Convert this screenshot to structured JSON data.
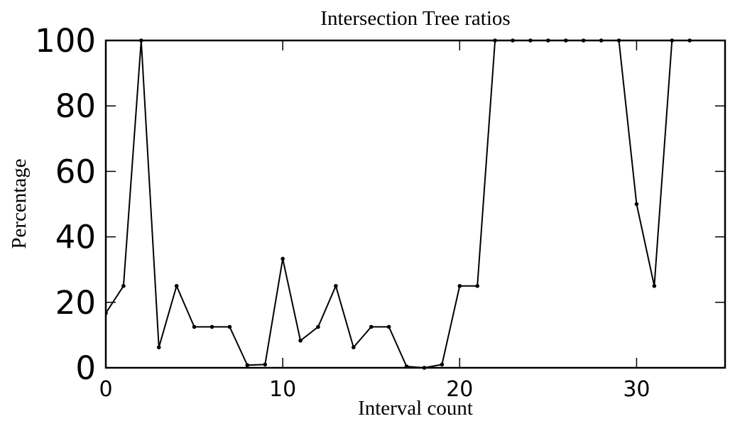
{
  "chart_data": {
    "type": "line",
    "title": "Intersection Tree ratios",
    "xlabel": "Interval count",
    "ylabel": "Percentage",
    "xlim": [
      0,
      35
    ],
    "ylim": [
      0,
      100
    ],
    "xticks": [
      0,
      10,
      20,
      30
    ],
    "yticks": [
      0,
      20,
      40,
      60,
      80,
      100
    ],
    "grid": false,
    "legend": "none",
    "line_color": "#000000",
    "series": [
      {
        "x": [
          0,
          1,
          2,
          3,
          4,
          5,
          6,
          7,
          8,
          9,
          10,
          11,
          12,
          13,
          14,
          15,
          16,
          17,
          18,
          19,
          20,
          21,
          22,
          23,
          24,
          25,
          26,
          27,
          28,
          29,
          30,
          31,
          32,
          33
        ],
        "values": [
          16.7,
          25,
          100,
          6.25,
          25,
          12.5,
          12.5,
          12.5,
          0.8,
          1.0,
          33.3,
          8.3,
          12.5,
          25,
          6.25,
          12.5,
          12.5,
          0.4,
          0.0,
          1.0,
          25,
          25,
          100,
          100,
          100,
          100,
          100,
          100,
          100,
          100,
          50,
          25,
          100,
          100
        ]
      }
    ]
  }
}
